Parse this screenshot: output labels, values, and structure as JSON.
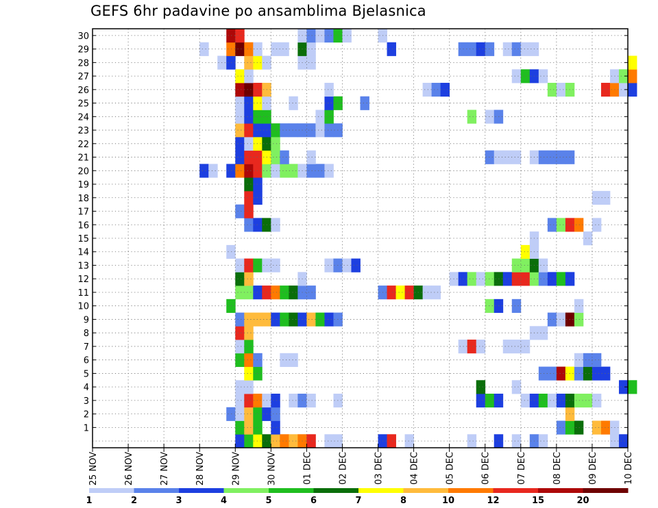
{
  "chart_data": {
    "type": "heatmap",
    "title": "GEFS 6hr padavine po ansamblima Bjelasnica",
    "x_tick_labels": [
      "25 NOV",
      "26 NOV",
      "27 NOV",
      "28 NOV",
      "29 NOV",
      "30 NOV",
      "01 DEC",
      "02 DEC",
      "03 DEC",
      "04 DEC",
      "05 DEC",
      "06 DEC",
      "07 DEC",
      "08 DEC",
      "09 DEC",
      "10 DEC"
    ],
    "y_tick_labels": [
      "1",
      "2",
      "3",
      "4",
      "5",
      "6",
      "7",
      "8",
      "9",
      "10",
      "11",
      "12",
      "13",
      "14",
      "15",
      "16",
      "17",
      "18",
      "19",
      "20",
      "21",
      "22",
      "23",
      "24",
      "25",
      "26",
      "27",
      "28",
      "29",
      "30"
    ],
    "xlim": [
      "25 NOV",
      "10 DEC"
    ],
    "x_step": "6hr",
    "ylim": [
      0,
      30
    ],
    "grid": true,
    "colorbar": {
      "labels": [
        "1",
        "2",
        "3",
        "4",
        "5",
        "6",
        "7",
        "8",
        "10",
        "12",
        "15",
        "20"
      ],
      "colors": [
        "#bfcdf7",
        "#5a82ea",
        "#1d3fe0",
        "#80f060",
        "#1fbe1f",
        "#0a6e0a",
        "#ffff00",
        "#ffbb3c",
        "#ff7a00",
        "#e8281e",
        "#ad0808",
        "#6e0000"
      ]
    },
    "cells": [
      [
        0,
        16,
        3
      ],
      [
        0,
        17,
        5
      ],
      [
        0,
        18,
        7
      ],
      [
        0,
        19,
        6
      ],
      [
        0,
        20,
        8
      ],
      [
        0,
        21,
        9
      ],
      [
        0,
        22,
        8
      ],
      [
        0,
        23,
        9
      ],
      [
        0,
        24,
        10
      ],
      [
        0,
        26,
        1
      ],
      [
        0,
        27,
        1
      ],
      [
        0,
        32,
        3
      ],
      [
        0,
        33,
        10
      ],
      [
        0,
        35,
        1
      ],
      [
        0,
        42,
        1
      ],
      [
        0,
        45,
        3
      ],
      [
        0,
        47,
        1
      ],
      [
        0,
        49,
        2
      ],
      [
        0,
        50,
        1
      ],
      [
        0,
        58,
        1
      ],
      [
        0,
        59,
        3
      ],
      [
        1,
        16,
        5
      ],
      [
        1,
        17,
        8
      ],
      [
        1,
        18,
        5
      ],
      [
        1,
        20,
        3
      ],
      [
        1,
        52,
        2
      ],
      [
        1,
        53,
        5
      ],
      [
        1,
        54,
        6
      ],
      [
        1,
        56,
        8
      ],
      [
        1,
        57,
        9
      ],
      [
        1,
        58,
        1
      ],
      [
        2,
        15,
        2
      ],
      [
        2,
        16,
        1
      ],
      [
        2,
        17,
        8
      ],
      [
        2,
        18,
        5
      ],
      [
        2,
        19,
        3
      ],
      [
        2,
        20,
        2
      ],
      [
        2,
        53,
        8
      ],
      [
        3,
        16,
        1
      ],
      [
        3,
        17,
        10
      ],
      [
        3,
        18,
        9
      ],
      [
        3,
        19,
        1
      ],
      [
        3,
        20,
        3
      ],
      [
        3,
        22,
        1
      ],
      [
        3,
        23,
        2
      ],
      [
        3,
        24,
        1
      ],
      [
        3,
        27,
        1
      ],
      [
        3,
        43,
        3
      ],
      [
        3,
        44,
        5
      ],
      [
        3,
        45,
        3
      ],
      [
        3,
        48,
        1
      ],
      [
        3,
        49,
        3
      ],
      [
        3,
        50,
        5
      ],
      [
        3,
        51,
        1
      ],
      [
        3,
        52,
        3
      ],
      [
        3,
        53,
        6
      ],
      [
        3,
        54,
        4
      ],
      [
        3,
        55,
        4
      ],
      [
        3,
        56,
        1
      ],
      [
        4,
        16,
        1
      ],
      [
        4,
        17,
        1
      ],
      [
        4,
        43,
        6
      ],
      [
        4,
        47,
        1
      ],
      [
        4,
        59,
        3
      ],
      [
        4,
        60,
        5
      ],
      [
        5,
        17,
        7
      ],
      [
        5,
        18,
        5
      ],
      [
        5,
        50,
        2
      ],
      [
        5,
        51,
        2
      ],
      [
        5,
        52,
        11
      ],
      [
        5,
        53,
        7
      ],
      [
        5,
        54,
        2
      ],
      [
        5,
        55,
        6
      ],
      [
        5,
        56,
        3
      ],
      [
        5,
        57,
        3
      ],
      [
        6,
        16,
        5
      ],
      [
        6,
        17,
        9
      ],
      [
        6,
        18,
        2
      ],
      [
        6,
        21,
        1
      ],
      [
        6,
        22,
        1
      ],
      [
        6,
        54,
        1
      ],
      [
        6,
        55,
        2
      ],
      [
        6,
        56,
        2
      ],
      [
        7,
        16,
        1
      ],
      [
        7,
        17,
        5
      ],
      [
        7,
        41,
        1
      ],
      [
        7,
        42,
        10
      ],
      [
        7,
        43,
        1
      ],
      [
        7,
        46,
        1
      ],
      [
        7,
        47,
        1
      ],
      [
        7,
        48,
        1
      ],
      [
        8,
        16,
        10
      ],
      [
        8,
        17,
        8
      ],
      [
        8,
        49,
        1
      ],
      [
        8,
        50,
        1
      ],
      [
        9,
        16,
        2
      ],
      [
        9,
        17,
        8
      ],
      [
        9,
        18,
        8
      ],
      [
        9,
        19,
        8
      ],
      [
        9,
        20,
        3
      ],
      [
        9,
        21,
        5
      ],
      [
        9,
        22,
        6
      ],
      [
        9,
        23,
        3
      ],
      [
        9,
        24,
        8
      ],
      [
        9,
        25,
        5
      ],
      [
        9,
        26,
        3
      ],
      [
        9,
        27,
        2
      ],
      [
        9,
        51,
        2
      ],
      [
        9,
        52,
        1
      ],
      [
        9,
        53,
        12
      ],
      [
        9,
        54,
        4
      ],
      [
        10,
        15,
        5
      ],
      [
        10,
        44,
        4
      ],
      [
        10,
        45,
        3
      ],
      [
        10,
        47,
        2
      ],
      [
        10,
        54,
        1
      ],
      [
        11,
        16,
        4
      ],
      [
        11,
        17,
        4
      ],
      [
        11,
        18,
        3
      ],
      [
        11,
        19,
        10
      ],
      [
        11,
        20,
        9
      ],
      [
        11,
        21,
        5
      ],
      [
        11,
        22,
        6
      ],
      [
        11,
        23,
        2
      ],
      [
        11,
        24,
        2
      ],
      [
        11,
        32,
        2
      ],
      [
        11,
        33,
        10
      ],
      [
        11,
        34,
        7
      ],
      [
        11,
        35,
        10
      ],
      [
        11,
        36,
        6
      ],
      [
        11,
        37,
        1
      ],
      [
        11,
        38,
        1
      ],
      [
        12,
        16,
        6
      ],
      [
        12,
        17,
        8
      ],
      [
        12,
        23,
        1
      ],
      [
        12,
        40,
        1
      ],
      [
        12,
        41,
        3
      ],
      [
        12,
        42,
        4
      ],
      [
        12,
        43,
        1
      ],
      [
        12,
        44,
        4
      ],
      [
        12,
        45,
        6
      ],
      [
        12,
        46,
        3
      ],
      [
        12,
        47,
        10
      ],
      [
        12,
        48,
        10
      ],
      [
        12,
        49,
        4
      ],
      [
        12,
        50,
        2
      ],
      [
        12,
        51,
        3
      ],
      [
        12,
        52,
        5
      ],
      [
        12,
        53,
        3
      ],
      [
        13,
        16,
        1
      ],
      [
        13,
        17,
        10
      ],
      [
        13,
        18,
        5
      ],
      [
        13,
        19,
        1
      ],
      [
        13,
        20,
        1
      ],
      [
        13,
        26,
        1
      ],
      [
        13,
        27,
        2
      ],
      [
        13,
        28,
        1
      ],
      [
        13,
        29,
        3
      ],
      [
        13,
        47,
        4
      ],
      [
        13,
        48,
        4
      ],
      [
        13,
        49,
        6
      ],
      [
        13,
        50,
        1
      ],
      [
        14,
        15,
        1
      ],
      [
        14,
        48,
        7
      ],
      [
        14,
        49,
        1
      ],
      [
        15,
        49,
        1
      ],
      [
        15,
        55,
        1
      ],
      [
        16,
        17,
        2
      ],
      [
        16,
        18,
        3
      ],
      [
        16,
        19,
        6
      ],
      [
        16,
        20,
        1
      ],
      [
        16,
        51,
        2
      ],
      [
        16,
        52,
        4
      ],
      [
        16,
        53,
        10
      ],
      [
        16,
        54,
        9
      ],
      [
        16,
        56,
        1
      ],
      [
        17,
        16,
        2
      ],
      [
        17,
        17,
        10
      ],
      [
        18,
        17,
        10
      ],
      [
        18,
        18,
        3
      ],
      [
        18,
        56,
        1
      ],
      [
        18,
        57,
        1
      ],
      [
        19,
        17,
        6
      ],
      [
        19,
        18,
        3
      ],
      [
        20,
        12,
        3
      ],
      [
        20,
        13,
        1
      ],
      [
        20,
        15,
        3
      ],
      [
        20,
        16,
        9
      ],
      [
        20,
        17,
        11
      ],
      [
        20,
        18,
        10
      ],
      [
        20,
        19,
        4
      ],
      [
        20,
        20,
        1
      ],
      [
        20,
        21,
        4
      ],
      [
        20,
        22,
        4
      ],
      [
        20,
        23,
        1
      ],
      [
        20,
        24,
        2
      ],
      [
        20,
        25,
        2
      ],
      [
        20,
        26,
        1
      ],
      [
        21,
        16,
        3
      ],
      [
        21,
        17,
        10
      ],
      [
        21,
        18,
        10
      ],
      [
        21,
        19,
        7
      ],
      [
        21,
        20,
        4
      ],
      [
        21,
        21,
        2
      ],
      [
        21,
        24,
        1
      ],
      [
        21,
        44,
        2
      ],
      [
        21,
        45,
        1
      ],
      [
        21,
        46,
        1
      ],
      [
        21,
        47,
        1
      ],
      [
        21,
        49,
        1
      ],
      [
        21,
        50,
        2
      ],
      [
        21,
        51,
        2
      ],
      [
        21,
        52,
        2
      ],
      [
        21,
        53,
        2
      ],
      [
        22,
        16,
        3
      ],
      [
        22,
        17,
        1
      ],
      [
        22,
        18,
        7
      ],
      [
        22,
        19,
        6
      ],
      [
        22,
        20,
        4
      ],
      [
        23,
        16,
        8
      ],
      [
        23,
        17,
        10
      ],
      [
        23,
        18,
        3
      ],
      [
        23,
        19,
        3
      ],
      [
        23,
        20,
        5
      ],
      [
        23,
        21,
        2
      ],
      [
        23,
        22,
        2
      ],
      [
        23,
        23,
        2
      ],
      [
        23,
        24,
        2
      ],
      [
        23,
        25,
        1
      ],
      [
        23,
        26,
        2
      ],
      [
        23,
        27,
        2
      ],
      [
        24,
        16,
        1
      ],
      [
        24,
        17,
        3
      ],
      [
        24,
        18,
        5
      ],
      [
        24,
        19,
        5
      ],
      [
        24,
        25,
        1
      ],
      [
        24,
        26,
        5
      ],
      [
        24,
        42,
        4
      ],
      [
        24,
        44,
        1
      ],
      [
        24,
        45,
        2
      ],
      [
        25,
        16,
        1
      ],
      [
        25,
        17,
        3
      ],
      [
        25,
        18,
        7
      ],
      [
        25,
        19,
        1
      ],
      [
        25,
        22,
        1
      ],
      [
        25,
        26,
        3
      ],
      [
        25,
        27,
        5
      ],
      [
        25,
        30,
        2
      ],
      [
        26,
        16,
        11
      ],
      [
        26,
        17,
        12
      ],
      [
        26,
        18,
        10
      ],
      [
        26,
        19,
        8
      ],
      [
        26,
        26,
        1
      ],
      [
        26,
        37,
        1
      ],
      [
        26,
        38,
        2
      ],
      [
        26,
        39,
        3
      ],
      [
        26,
        51,
        4
      ],
      [
        26,
        52,
        1
      ],
      [
        26,
        53,
        4
      ],
      [
        26,
        57,
        10
      ],
      [
        26,
        58,
        9
      ],
      [
        26,
        59,
        1
      ],
      [
        26,
        60,
        3
      ],
      [
        27,
        16,
        7
      ],
      [
        27,
        17,
        1
      ],
      [
        27,
        47,
        1
      ],
      [
        27,
        48,
        5
      ],
      [
        27,
        49,
        3
      ],
      [
        27,
        50,
        1
      ],
      [
        27,
        58,
        1
      ],
      [
        27,
        59,
        4
      ],
      [
        27,
        60,
        9
      ],
      [
        28,
        14,
        1
      ],
      [
        28,
        15,
        3
      ],
      [
        28,
        17,
        8
      ],
      [
        28,
        18,
        7
      ],
      [
        28,
        19,
        1
      ],
      [
        28,
        23,
        1
      ],
      [
        28,
        24,
        1
      ],
      [
        28,
        60,
        7
      ],
      [
        29,
        12,
        1
      ],
      [
        29,
        15,
        9
      ],
      [
        29,
        16,
        12
      ],
      [
        29,
        17,
        9
      ],
      [
        29,
        18,
        1
      ],
      [
        29,
        20,
        1
      ],
      [
        29,
        21,
        1
      ],
      [
        29,
        23,
        6
      ],
      [
        29,
        24,
        1
      ],
      [
        29,
        33,
        3
      ],
      [
        29,
        41,
        2
      ],
      [
        29,
        42,
        2
      ],
      [
        29,
        43,
        3
      ],
      [
        29,
        44,
        2
      ],
      [
        29,
        46,
        1
      ],
      [
        29,
        47,
        2
      ],
      [
        29,
        48,
        1
      ],
      [
        29,
        49,
        1
      ],
      [
        30,
        15,
        11
      ],
      [
        30,
        16,
        10
      ],
      [
        30,
        23,
        1
      ],
      [
        30,
        24,
        2
      ],
      [
        30,
        25,
        1
      ],
      [
        30,
        26,
        2
      ],
      [
        30,
        27,
        5
      ],
      [
        30,
        28,
        1
      ],
      [
        30,
        32,
        1
      ]
    ]
  }
}
